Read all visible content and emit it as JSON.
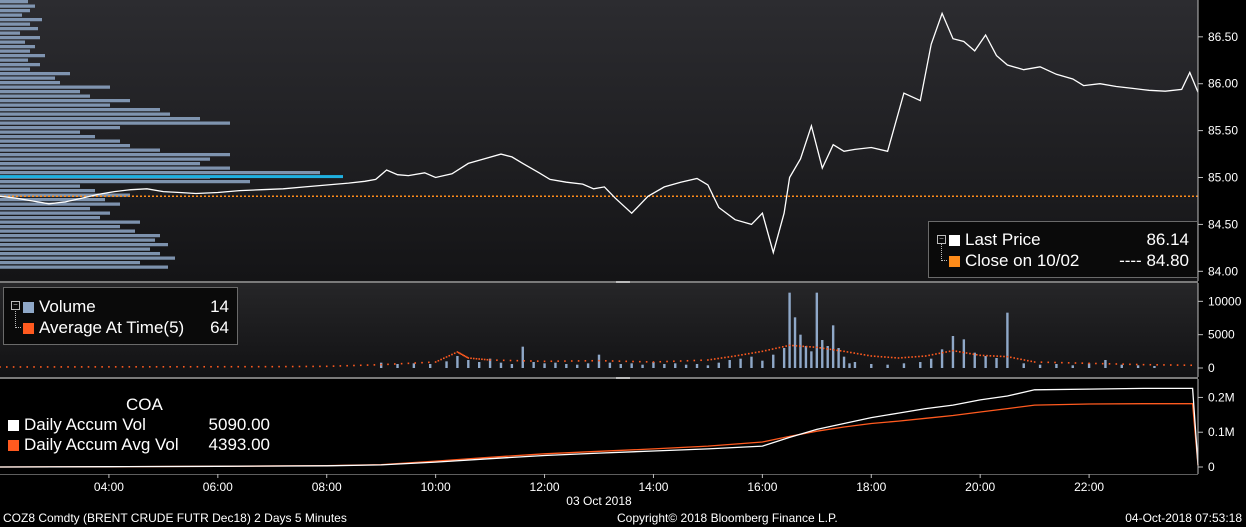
{
  "footer": {
    "security": "COZ8 Comdty (BRENT CRUDE FUTR Dec18) 2 Days 5 Minutes",
    "copyright": "Copyright© 2018 Bloomberg Finance L.P.",
    "timestamp": "04-Oct-2018 07:53:18"
  },
  "legends": {
    "price": {
      "last_label": "Last Price",
      "last_value": "86.14",
      "close_label": "Close on 10/02",
      "close_value": "---- 84.80"
    },
    "volume": {
      "vol_label": "Volume",
      "vol_value": "14",
      "avg_label": "Average At Time(5)",
      "avg_value": "64"
    },
    "accum": {
      "title": "COA",
      "vol_label": "Daily Accum Vol",
      "vol_value": "5090.00",
      "avg_label": "Daily Accum Avg Vol",
      "avg_value": "4393.00"
    }
  },
  "colors": {
    "price_line": "#ffffff",
    "prev_close": "#ff8c1a",
    "volume_bar": "#8fa8c8",
    "avg_at_time": "#ff5a1f",
    "accum_vol": "#ffffff",
    "accum_avg": "#ff5a1f",
    "profile": "#8fa8c8",
    "profile_poc": "#1fb0e0"
  },
  "chart_data": [
    {
      "type": "line",
      "x_date_label": "03 Oct 2018",
      "x_ticks": [
        "04:00",
        "06:00",
        "08:00",
        "10:00",
        "12:00",
        "14:00",
        "16:00",
        "18:00",
        "20:00",
        "22:00"
      ],
      "x_tick_hours": [
        4,
        6,
        8,
        10,
        12,
        14,
        16,
        18,
        20,
        22
      ],
      "xlim": [
        2,
        24
      ],
      "ylim": [
        83.95,
        86.85
      ],
      "y_ticks": [
        "84.00",
        "84.50",
        "85.00",
        "85.50",
        "86.00",
        "86.50"
      ],
      "y_tick_values": [
        84.0,
        84.5,
        85.0,
        85.5,
        86.0,
        86.5
      ],
      "prev_close": 84.8,
      "series": [
        {
          "name": "Last Price",
          "x": [
            2.0,
            2.3,
            2.6,
            2.9,
            3.2,
            3.5,
            3.8,
            4.1,
            4.4,
            4.7,
            5.0,
            5.3,
            5.6,
            6.0,
            6.4,
            6.8,
            7.2,
            7.6,
            8.0,
            8.4,
            8.7,
            8.9,
            9.1,
            9.3,
            9.5,
            9.8,
            10.0,
            10.3,
            10.6,
            10.9,
            11.2,
            11.4,
            11.6,
            11.9,
            12.1,
            12.4,
            12.7,
            12.9,
            13.1,
            13.3,
            13.6,
            13.9,
            14.2,
            14.5,
            14.8,
            15.0,
            15.2,
            15.5,
            15.8,
            16.0,
            16.2,
            16.4,
            16.5,
            16.7,
            16.9,
            17.1,
            17.3,
            17.5,
            17.7,
            18.0,
            18.3,
            18.6,
            18.9,
            19.1,
            19.3,
            19.5,
            19.7,
            19.9,
            20.1,
            20.3,
            20.5,
            20.8,
            21.1,
            21.4,
            21.7,
            21.9,
            22.2,
            22.5,
            22.8,
            23.1,
            23.4,
            23.7,
            23.85,
            24.0
          ],
          "y": [
            84.8,
            84.78,
            84.75,
            84.72,
            84.74,
            84.78,
            84.82,
            84.85,
            84.87,
            84.88,
            84.85,
            84.84,
            84.83,
            84.84,
            84.86,
            84.87,
            84.88,
            84.9,
            84.92,
            84.94,
            84.96,
            84.98,
            85.08,
            85.03,
            85.02,
            85.05,
            85.0,
            85.04,
            85.15,
            85.2,
            85.25,
            85.22,
            85.15,
            85.05,
            84.98,
            84.95,
            84.93,
            84.88,
            84.9,
            84.78,
            84.62,
            84.8,
            84.9,
            84.95,
            84.99,
            84.92,
            84.68,
            84.55,
            84.5,
            84.62,
            84.2,
            84.62,
            85.0,
            85.2,
            85.55,
            85.1,
            85.35,
            85.28,
            85.3,
            85.32,
            85.28,
            85.9,
            85.82,
            86.42,
            86.75,
            86.48,
            86.45,
            86.35,
            86.52,
            86.3,
            86.2,
            86.15,
            86.18,
            86.1,
            86.05,
            85.98,
            86.0,
            85.97,
            85.95,
            85.93,
            85.92,
            85.94,
            86.12,
            85.91
          ]
        }
      ]
    },
    {
      "type": "bar",
      "xlim": [
        2,
        24
      ],
      "ylim": [
        0,
        12000
      ],
      "y_ticks": [
        "0",
        "5000",
        "10000"
      ],
      "y_tick_values": [
        0,
        5000,
        10000
      ],
      "series": [
        {
          "name": "Volume",
          "x": [
            9.0,
            9.3,
            9.6,
            9.9,
            10.2,
            10.4,
            10.6,
            10.8,
            11.0,
            11.2,
            11.4,
            11.6,
            11.8,
            12.0,
            12.2,
            12.4,
            12.6,
            12.8,
            13.0,
            13.2,
            13.4,
            13.6,
            13.8,
            14.0,
            14.2,
            14.4,
            14.6,
            14.8,
            15.0,
            15.2,
            15.4,
            15.6,
            15.8,
            16.0,
            16.2,
            16.4,
            16.5,
            16.6,
            16.7,
            16.8,
            16.9,
            17.0,
            17.1,
            17.2,
            17.3,
            17.4,
            17.5,
            17.6,
            17.7,
            18.0,
            18.3,
            18.6,
            18.9,
            19.1,
            19.3,
            19.5,
            19.7,
            19.9,
            20.1,
            20.3,
            20.5,
            20.8,
            21.1,
            21.4,
            21.7,
            22.0,
            22.3,
            22.6,
            22.9,
            23.2
          ],
          "values": [
            800,
            600,
            700,
            600,
            1000,
            1800,
            1200,
            900,
            1400,
            800,
            600,
            3200,
            900,
            700,
            800,
            600,
            500,
            700,
            2000,
            800,
            600,
            700,
            500,
            900,
            600,
            700,
            500,
            600,
            400,
            800,
            1200,
            1400,
            1700,
            1100,
            2000,
            3000,
            11300,
            7600,
            5000,
            3300,
            2500,
            11300,
            4200,
            3300,
            6400,
            3000,
            1700,
            700,
            900,
            600,
            500,
            700,
            900,
            1400,
            2800,
            4800,
            4300,
            2300,
            1800,
            1500,
            8300,
            700,
            500,
            600,
            400,
            700,
            1200,
            500,
            400,
            300
          ]
        },
        {
          "name": "Average At Time(5)",
          "x": [
            2.0,
            3.0,
            4.0,
            5.0,
            6.0,
            7.0,
            8.0,
            9.0,
            10.0,
            10.4,
            10.6,
            11.0,
            12.0,
            13.0,
            14.0,
            15.0,
            15.5,
            16.0,
            16.5,
            17.0,
            17.5,
            18.0,
            18.5,
            19.0,
            19.5,
            20.0,
            20.5,
            21.0,
            22.0,
            23.0,
            24.0
          ],
          "values": [
            150,
            160,
            170,
            180,
            190,
            200,
            250,
            500,
            900,
            2400,
            1500,
            1200,
            1000,
            1100,
            900,
            1200,
            1800,
            2500,
            3400,
            3100,
            2500,
            1800,
            1500,
            1800,
            2600,
            1900,
            1700,
            900,
            700,
            500,
            400
          ]
        }
      ]
    },
    {
      "type": "line",
      "xlim": [
        2,
        24
      ],
      "ylim": [
        0,
        230000
      ],
      "y_ticks": [
        "0",
        "0.1M",
        "0.2M"
      ],
      "y_tick_values": [
        0,
        100000,
        200000
      ],
      "series": [
        {
          "name": "Daily Accum Vol",
          "x": [
            2,
            4,
            6,
            8,
            9,
            10,
            11,
            12,
            13,
            14,
            15,
            16,
            16.5,
            17,
            17.5,
            18,
            18.5,
            19,
            19.5,
            20,
            20.5,
            21,
            22,
            23,
            23.9,
            24
          ],
          "values": [
            0,
            1000,
            2000,
            3500,
            6000,
            14000,
            24000,
            33000,
            40000,
            46000,
            52000,
            60000,
            85000,
            108000,
            125000,
            142000,
            155000,
            168000,
            178000,
            193000,
            204000,
            222000,
            224000,
            226000,
            226000,
            5090
          ]
        },
        {
          "name": "Daily Accum Avg Vol",
          "x": [
            2,
            4,
            6,
            8,
            9,
            10,
            11,
            12,
            13,
            14,
            15,
            16,
            16.5,
            17,
            17.5,
            18,
            18.5,
            19,
            19.5,
            20,
            20.5,
            21,
            22,
            23,
            23.9,
            24
          ],
          "values": [
            0,
            1000,
            2000,
            4000,
            7000,
            17000,
            28000,
            38000,
            45000,
            52000,
            60000,
            72000,
            88000,
            103000,
            115000,
            125000,
            132000,
            140000,
            148000,
            158000,
            168000,
            178000,
            181000,
            182000,
            182000,
            4393
          ]
        }
      ]
    }
  ]
}
